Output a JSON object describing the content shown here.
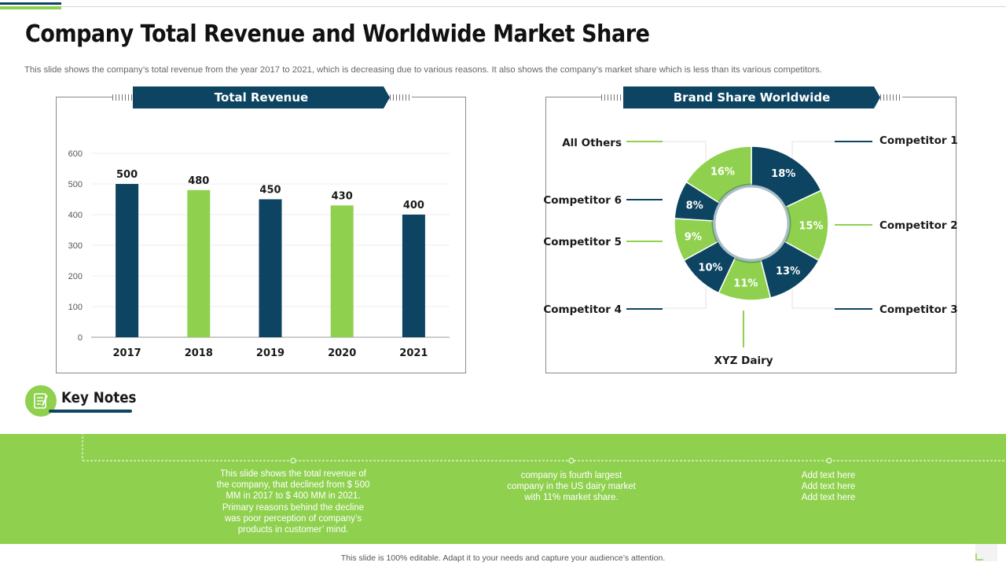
{
  "slide": {
    "title": "Company Total Revenue and Worldwide Market Share",
    "subtitle": "This slide shows the company’s total revenue from the year 2017 to 2021, which is decreasing due to various reasons. It also shows the company’s market share which is less than its various competitors."
  },
  "colors": {
    "navy": "#0d4461",
    "green": "#8fd14f"
  },
  "chart_data": [
    {
      "type": "bar",
      "title": "Total Revenue",
      "categories": [
        "2017",
        "2018",
        "2019",
        "2020",
        "2021"
      ],
      "values": [
        500,
        480,
        450,
        430,
        400
      ],
      "data_labels": [
        "500",
        "480",
        "450",
        "430",
        "400"
      ],
      "bar_colors": [
        "#0d4461",
        "#8fd14f",
        "#0d4461",
        "#8fd14f",
        "#0d4461"
      ],
      "ylim": [
        0,
        600
      ],
      "yticks": [
        0,
        100,
        200,
        300,
        400,
        500,
        600
      ],
      "xlabel": "",
      "ylabel": "",
      "grid": true
    },
    {
      "type": "pie",
      "title": "Brand Share Worldwide",
      "donut": true,
      "slices": [
        {
          "label": "Competitor 1",
          "value": 18,
          "pct": "18%",
          "color": "#0d4461"
        },
        {
          "label": "Competitor 2",
          "value": 15,
          "pct": "15%",
          "color": "#8fd14f"
        },
        {
          "label": "Competitor 3",
          "value": 13,
          "pct": "13%",
          "color": "#0d4461"
        },
        {
          "label": "XYZ Dairy",
          "value": 11,
          "pct": "11%",
          "color": "#8fd14f"
        },
        {
          "label": "Competitor 4",
          "value": 10,
          "pct": "10%",
          "color": "#0d4461"
        },
        {
          "label": "Competitor 5",
          "value": 9,
          "pct": "9%",
          "color": "#8fd14f"
        },
        {
          "label": "Competitor 6",
          "value": 8,
          "pct": "8%",
          "color": "#0d4461"
        },
        {
          "label": "All Others",
          "value": 16,
          "pct": "16%",
          "color": "#8fd14f"
        }
      ]
    }
  ],
  "key_notes": {
    "title": "Key Notes",
    "notes": [
      {
        "lines": [
          "This slide shows the total revenue of",
          "the company, that declined from $ 500",
          "MM  in 2017 to $ 400 MM  in 2021.",
          "Primary reasons behind the decline",
          "was poor perception of company’s",
          "products in customer’ mind."
        ]
      },
      {
        "lines": [
          "company is fourth largest",
          "company in the US dairy market",
          "with 11% market share."
        ]
      },
      {
        "lines": [
          "Add text here",
          "Add text here",
          "Add text here"
        ]
      }
    ]
  },
  "footer": {
    "text": "This slide is 100% editable. Adapt it to your needs and capture your audience’s attention."
  }
}
